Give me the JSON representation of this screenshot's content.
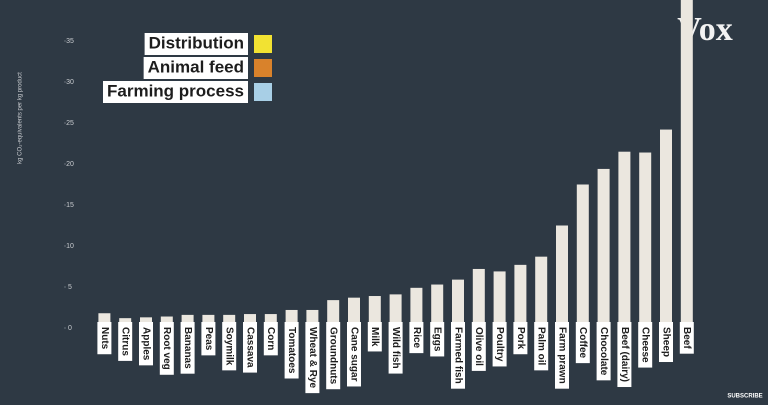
{
  "chart_data": {
    "type": "bar",
    "y_label": "kg CO₂-equivalents per kg product",
    "categories": [
      "Nuts",
      "Citrus",
      "Apples",
      "Root veg",
      "Bananas",
      "Peas",
      "Soymilk",
      "Cassava",
      "Corn",
      "Tomatoes",
      "Wheat & Rye",
      "Groundnuts",
      "Cane sugar",
      "Milk",
      "Wild fish",
      "Rice",
      "Eggs",
      "Farmed fish",
      "Olive oil",
      "Poultry",
      "Pork",
      "Palm oil",
      "Farm prawn",
      "Coffee",
      "Chocolate",
      "Beef (dairy)",
      "Cheese",
      "Sheep",
      "Beef"
    ],
    "values": [
      1.8,
      1.2,
      1.3,
      1.4,
      1.6,
      1.6,
      1.6,
      1.7,
      1.7,
      2.2,
      2.2,
      3.4,
      3.7,
      3.9,
      4.1,
      4.9,
      5.3,
      5.9,
      7.2,
      6.9,
      7.7,
      8.7,
      12.5,
      17.5,
      19.4,
      21.5,
      21.4,
      24.2,
      40
    ],
    "color": "#ebe7df",
    "ylim": [
      0,
      40
    ],
    "yticks": [
      0,
      5,
      10,
      15,
      20,
      25,
      30,
      35
    ],
    "legend": [
      {
        "name": "Distribution",
        "color": "#f2e232"
      },
      {
        "name": "Animal feed",
        "color": "#d9822b"
      },
      {
        "name": "Farming process",
        "color": "#a8cfe6"
      }
    ]
  },
  "brand": "Vox",
  "subscribe": "SUBSCRIBE"
}
